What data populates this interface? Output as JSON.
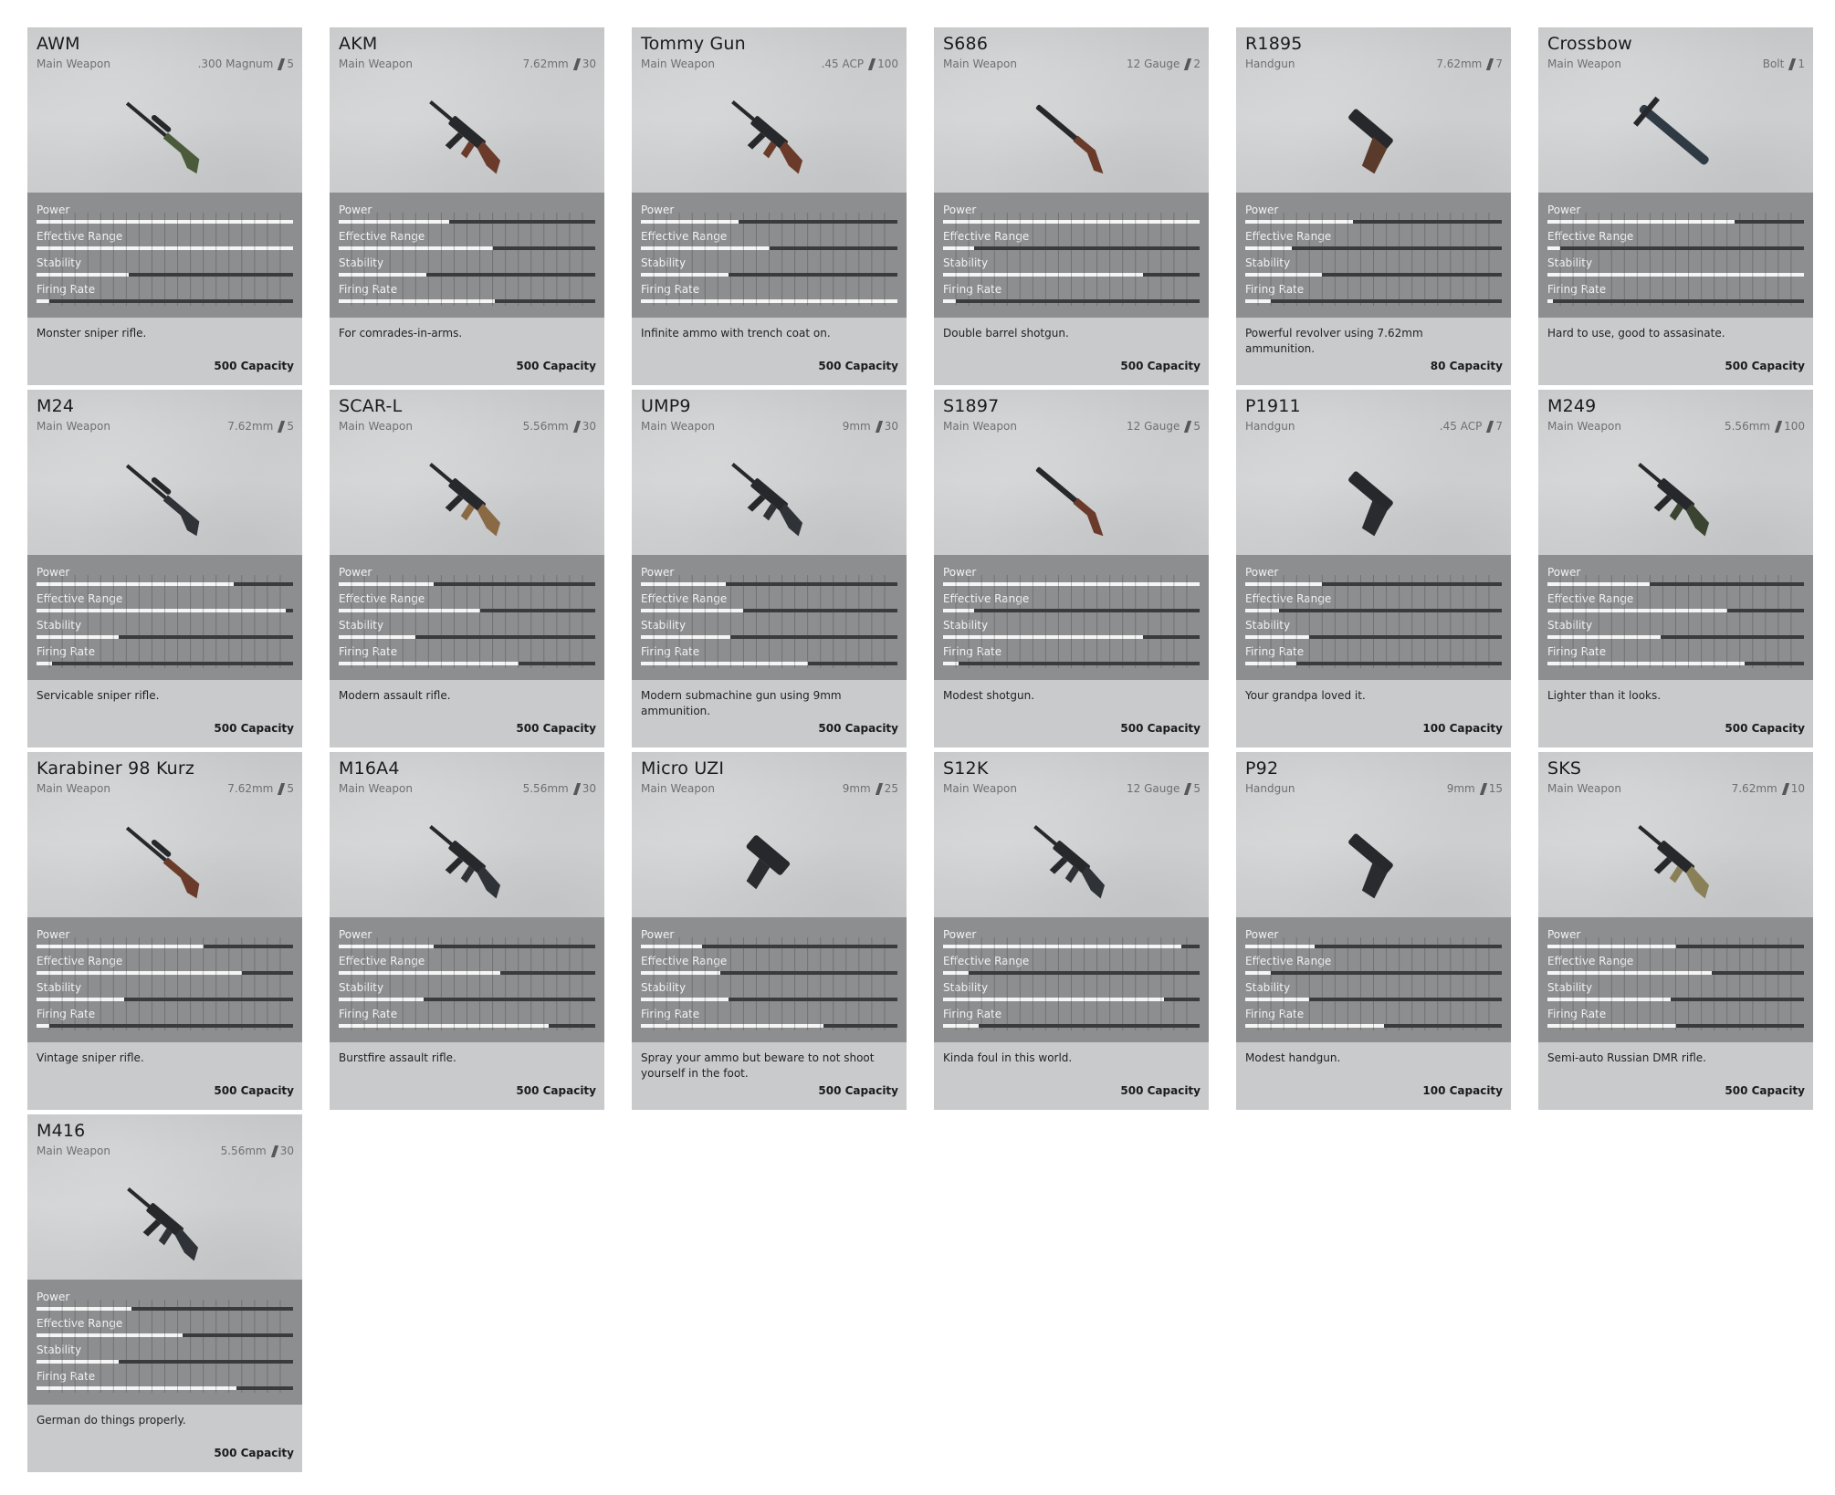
{
  "labels": {
    "power": "Power",
    "range": "Effective Range",
    "stability": "Stability",
    "rate": "Firing Rate"
  },
  "weapons": [
    {
      "name": "AWM",
      "type": "Main Weapon",
      "caliber": ".300 Magnum",
      "mag": "5",
      "power": 1.0,
      "range": 1.0,
      "stability": 0.36,
      "rate": 0.05,
      "desc": "Monster sniper rifle.",
      "capacity": "500 Capacity",
      "gun": "sniper",
      "color": "#4b5a3a"
    },
    {
      "name": "AKM",
      "type": "Main Weapon",
      "caliber": "7.62mm",
      "mag": "30",
      "power": 0.43,
      "range": 0.6,
      "stability": 0.34,
      "rate": 0.61,
      "desc": "For comrades-in-arms.",
      "capacity": "500 Capacity",
      "gun": "rifle",
      "color": "#6a3b2a"
    },
    {
      "name": "Tommy Gun",
      "type": "Main Weapon",
      "caliber": ".45 ACP",
      "mag": "100",
      "power": 0.38,
      "range": 0.5,
      "stability": 0.34,
      "rate": 1.0,
      "desc": "Infinite ammo with trench coat on.",
      "capacity": "500 Capacity",
      "gun": "smg",
      "color": "#6a3b2a"
    },
    {
      "name": "S686",
      "type": "Main Weapon",
      "caliber": "12 Gauge",
      "mag": "2",
      "power": 1.0,
      "range": 0.12,
      "stability": 0.78,
      "rate": 0.05,
      "desc": "Double barrel shotgun.",
      "capacity": "500 Capacity",
      "gun": "shotgun",
      "color": "#6a3b2a"
    },
    {
      "name": "R1895",
      "type": "Handgun",
      "caliber": "7.62mm",
      "mag": "7",
      "power": 0.42,
      "range": 0.18,
      "stability": 0.3,
      "rate": 0.1,
      "desc": "Powerful revolver using 7.62mm ammunition.",
      "capacity": "80 Capacity",
      "gun": "revolver",
      "color": "#5a3a2a"
    },
    {
      "name": "Crossbow",
      "type": "Main Weapon",
      "caliber": "Bolt",
      "mag": "1",
      "power": 0.73,
      "range": 0.05,
      "stability": 1.0,
      "rate": 0.02,
      "desc": "Hard to use, good to assasinate.",
      "capacity": "500 Capacity",
      "gun": "crossbow",
      "color": "#2f3a44"
    },
    {
      "name": "M24",
      "type": "Main Weapon",
      "caliber": "7.62mm",
      "mag": "5",
      "power": 0.77,
      "range": 0.97,
      "stability": 0.32,
      "rate": 0.06,
      "desc": "Servicable sniper rifle.",
      "capacity": "500 Capacity",
      "gun": "sniper",
      "color": "#2f3236"
    },
    {
      "name": "SCAR-L",
      "type": "Main Weapon",
      "caliber": "5.56mm",
      "mag": "30",
      "power": 0.37,
      "range": 0.55,
      "stability": 0.3,
      "rate": 0.7,
      "desc": "Modern assault rifle.",
      "capacity": "500 Capacity",
      "gun": "rifle",
      "color": "#8a6a45"
    },
    {
      "name": "UMP9",
      "type": "Main Weapon",
      "caliber": "9mm",
      "mag": "30",
      "power": 0.33,
      "range": 0.4,
      "stability": 0.35,
      "rate": 0.65,
      "desc": "Modern submachine gun using 9mm ammunition.",
      "capacity": "500 Capacity",
      "gun": "smg",
      "color": "#2f3236"
    },
    {
      "name": "S1897",
      "type": "Main Weapon",
      "caliber": "12 Gauge",
      "mag": "5",
      "power": 1.0,
      "range": 0.12,
      "stability": 0.78,
      "rate": 0.06,
      "desc": "Modest shotgun.",
      "capacity": "500 Capacity",
      "gun": "shotgun",
      "color": "#6a3b2a"
    },
    {
      "name": "P1911",
      "type": "Handgun",
      "caliber": ".45 ACP",
      "mag": "7",
      "power": 0.3,
      "range": 0.13,
      "stability": 0.25,
      "rate": 0.2,
      "desc": "Your grandpa loved it.",
      "capacity": "100 Capacity",
      "gun": "pistol",
      "color": "#2a2b2e"
    },
    {
      "name": "M249",
      "type": "Main Weapon",
      "caliber": "5.56mm",
      "mag": "100",
      "power": 0.4,
      "range": 0.7,
      "stability": 0.44,
      "rate": 0.77,
      "desc": "Lighter than it looks.",
      "capacity": "500 Capacity",
      "gun": "lmg",
      "color": "#3a4430"
    },
    {
      "name": "Karabiner 98 Kurz",
      "type": "Main Weapon",
      "caliber": "7.62mm",
      "mag": "5",
      "power": 0.65,
      "range": 0.8,
      "stability": 0.34,
      "rate": 0.05,
      "desc": "Vintage sniper rifle.",
      "capacity": "500 Capacity",
      "gun": "sniper",
      "color": "#6a3b2a"
    },
    {
      "name": "M16A4",
      "type": "Main Weapon",
      "caliber": "5.56mm",
      "mag": "30",
      "power": 0.37,
      "range": 0.63,
      "stability": 0.33,
      "rate": 0.82,
      "desc": "Burstfire assault rifle.",
      "capacity": "500 Capacity",
      "gun": "rifle",
      "color": "#2f3236"
    },
    {
      "name": "Micro UZI",
      "type": "Main Weapon",
      "caliber": "9mm",
      "mag": "25",
      "power": 0.24,
      "range": 0.31,
      "stability": 0.34,
      "rate": 0.71,
      "desc": "Spray your ammo but beware to not shoot yourself in the foot.",
      "capacity": "500 Capacity",
      "gun": "uzi",
      "color": "#2a2b2e"
    },
    {
      "name": "S12K",
      "type": "Main Weapon",
      "caliber": "12 Gauge",
      "mag": "5",
      "power": 0.93,
      "range": 0.1,
      "stability": 0.86,
      "rate": 0.14,
      "desc": "Kinda foul in this world.",
      "capacity": "500 Capacity",
      "gun": "rifle",
      "color": "#2f3236"
    },
    {
      "name": "P92",
      "type": "Handgun",
      "caliber": "9mm",
      "mag": "15",
      "power": 0.27,
      "range": 0.1,
      "stability": 0.25,
      "rate": 0.54,
      "desc": "Modest handgun.",
      "capacity": "100 Capacity",
      "gun": "pistol",
      "color": "#2a2b2e"
    },
    {
      "name": "SKS",
      "type": "Main Weapon",
      "caliber": "7.62mm",
      "mag": "10",
      "power": 0.5,
      "range": 0.64,
      "stability": 0.48,
      "rate": 0.5,
      "desc": "Semi-auto Russian DMR rifle.",
      "capacity": "500 Capacity",
      "gun": "rifle",
      "color": "#8a8058"
    },
    {
      "name": "M416",
      "type": "Main Weapon",
      "caliber": "5.56mm",
      "mag": "30",
      "power": 0.37,
      "range": 0.57,
      "stability": 0.32,
      "rate": 0.78,
      "desc": "German do things properly.",
      "capacity": "500 Capacity",
      "gun": "rifle",
      "color": "#2f3236"
    }
  ]
}
